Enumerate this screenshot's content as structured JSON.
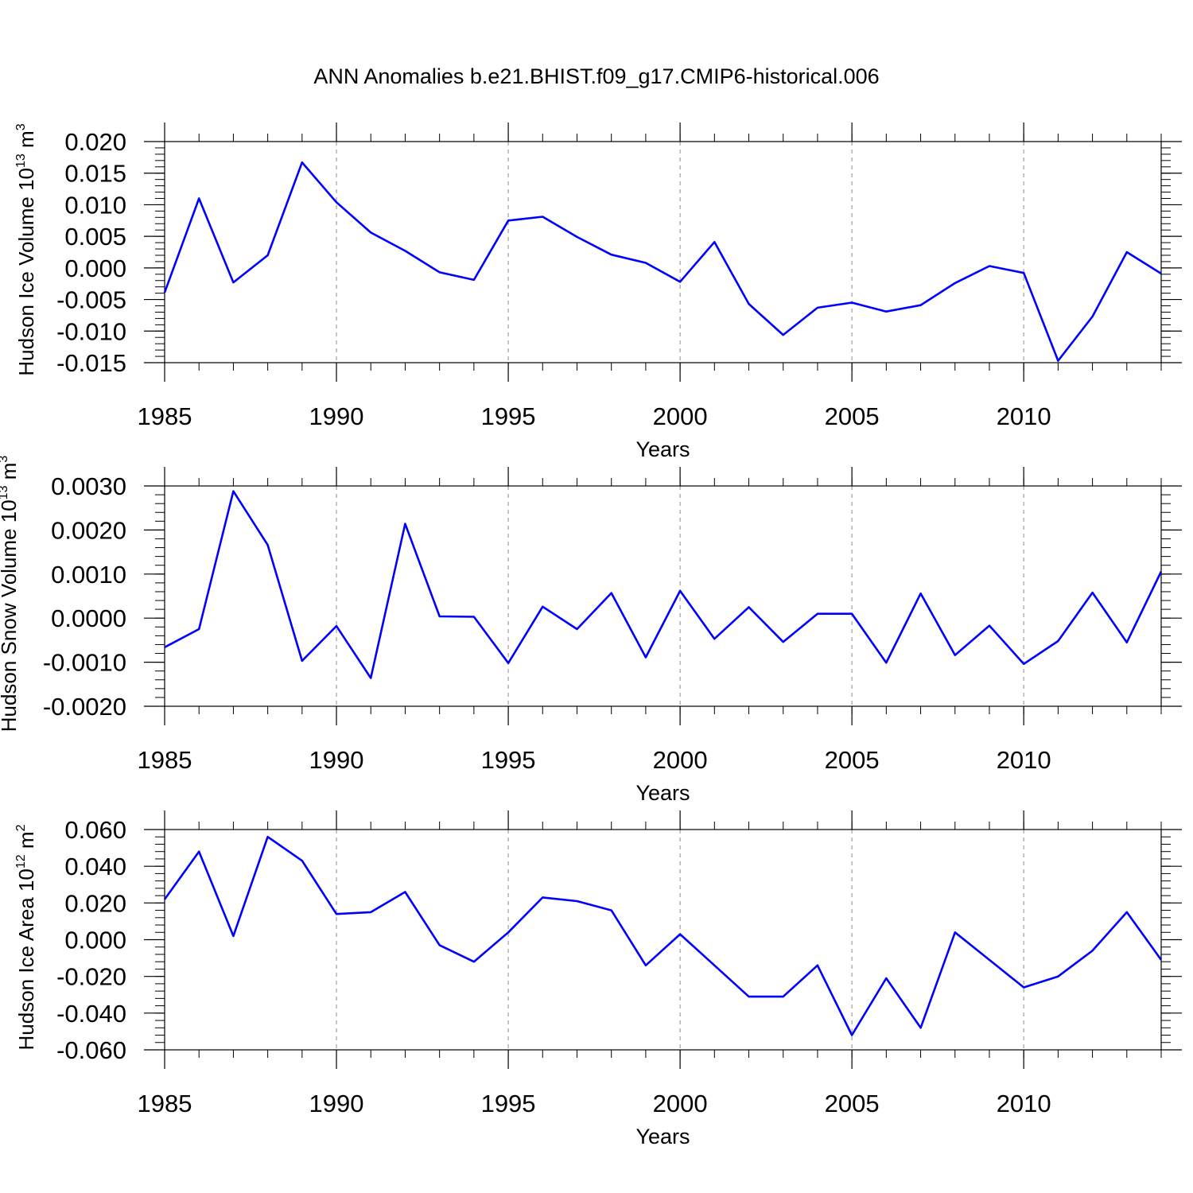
{
  "title": "ANN Anomalies b.e21.BHIST.f09_g17.CMIP6-historical.006",
  "colors": {
    "line": "#0000ff",
    "axis": "#000000",
    "grid": "#a0a0a0"
  },
  "chart_data": [
    {
      "type": "line",
      "xlabel": "Years",
      "ylabel": {
        "main": "Hudson Ice Volume 10",
        "exp": "13",
        "unit": " m",
        "unit_exp": "3"
      },
      "xlim": [
        1985,
        2014
      ],
      "ylim": [
        -0.015,
        0.02
      ],
      "xticks": [
        "1985",
        "1990",
        "1995",
        "2000",
        "2005",
        "2010"
      ],
      "yticks": [
        "0.020",
        "0.015",
        "0.010",
        "0.005",
        "0.000",
        "-0.005",
        "-0.010",
        "-0.015"
      ],
      "x": [
        1985,
        1986,
        1987,
        1988,
        1989,
        1990,
        1991,
        1992,
        1993,
        1994,
        1995,
        1996,
        1997,
        1998,
        1999,
        2000,
        2001,
        2002,
        2003,
        2004,
        2005,
        2006,
        2007,
        2008,
        2009,
        2010,
        2011,
        2012,
        2013,
        2014
      ],
      "series": [
        {
          "values": [
            -0.0039,
            0.011,
            -0.0023,
            0.002,
            0.0167,
            0.0104,
            0.0056,
            0.0027,
            -0.0007,
            -0.0019,
            0.0075,
            0.0081,
            0.0049,
            0.0021,
            0.0008,
            -0.0022,
            0.0041,
            -0.0057,
            -0.0106,
            -0.0063,
            -0.0055,
            -0.0069,
            -0.0059,
            -0.0024,
            0.0003,
            -0.0008,
            -0.0147,
            -0.0077,
            0.0025,
            -0.0009
          ]
        }
      ]
    },
    {
      "type": "line",
      "xlabel": "Years",
      "ylabel": {
        "main": "Hudson Snow Volume 10",
        "exp": "13",
        "unit": " m",
        "unit_exp": "3"
      },
      "xlim": [
        1985,
        2014
      ],
      "ylim": [
        -0.002,
        0.003
      ],
      "xticks": [
        "1985",
        "1990",
        "1995",
        "2000",
        "2005",
        "2010"
      ],
      "yticks": [
        "0.0030",
        "0.0020",
        "0.0010",
        "0.0000",
        "-0.0010",
        "-0.0020"
      ],
      "x": [
        1985,
        1986,
        1987,
        1988,
        1989,
        1990,
        1991,
        1992,
        1993,
        1994,
        1995,
        1996,
        1997,
        1998,
        1999,
        2000,
        2001,
        2002,
        2003,
        2004,
        2005,
        2006,
        2007,
        2008,
        2009,
        2010,
        2011,
        2012,
        2013,
        2014
      ],
      "series": [
        {
          "values": [
            -0.00066,
            -0.00025,
            0.00288,
            0.00166,
            -0.00097,
            -0.00018,
            -0.00136,
            0.00214,
            4e-05,
            3e-05,
            -0.00102,
            0.00026,
            -0.00025,
            0.00057,
            -0.00089,
            0.00062,
            -0.00047,
            0.00025,
            -0.00054,
            0.0001,
            0.0001,
            -0.00101,
            0.00056,
            -0.00084,
            -0.00017,
            -0.00104,
            -0.00052,
            0.00058,
            -0.00055,
            0.00106
          ]
        }
      ]
    },
    {
      "type": "line",
      "xlabel": "Years",
      "ylabel": {
        "main": "Hudson Ice Area 10",
        "exp": "12",
        "unit": " m",
        "unit_exp": "2"
      },
      "xlim": [
        1985,
        2014
      ],
      "ylim": [
        -0.06,
        0.06
      ],
      "xticks": [
        "1985",
        "1990",
        "1995",
        "2000",
        "2005",
        "2010"
      ],
      "yticks": [
        "0.060",
        "0.040",
        "0.020",
        "0.000",
        "-0.020",
        "-0.040",
        "-0.060"
      ],
      "x": [
        1985,
        1986,
        1987,
        1988,
        1989,
        1990,
        1991,
        1992,
        1993,
        1994,
        1995,
        1996,
        1997,
        1998,
        1999,
        2000,
        2001,
        2002,
        2003,
        2004,
        2005,
        2006,
        2007,
        2008,
        2009,
        2010,
        2011,
        2012,
        2013,
        2014
      ],
      "series": [
        {
          "values": [
            0.022,
            0.048,
            0.002,
            0.056,
            0.043,
            0.014,
            0.015,
            0.026,
            -0.003,
            -0.012,
            0.004,
            0.023,
            0.021,
            0.016,
            -0.014,
            0.003,
            -0.014,
            -0.031,
            -0.031,
            -0.014,
            -0.052,
            -0.021,
            -0.048,
            0.004,
            -0.011,
            -0.026,
            -0.02,
            -0.006,
            0.015,
            -0.011
          ]
        }
      ]
    }
  ]
}
